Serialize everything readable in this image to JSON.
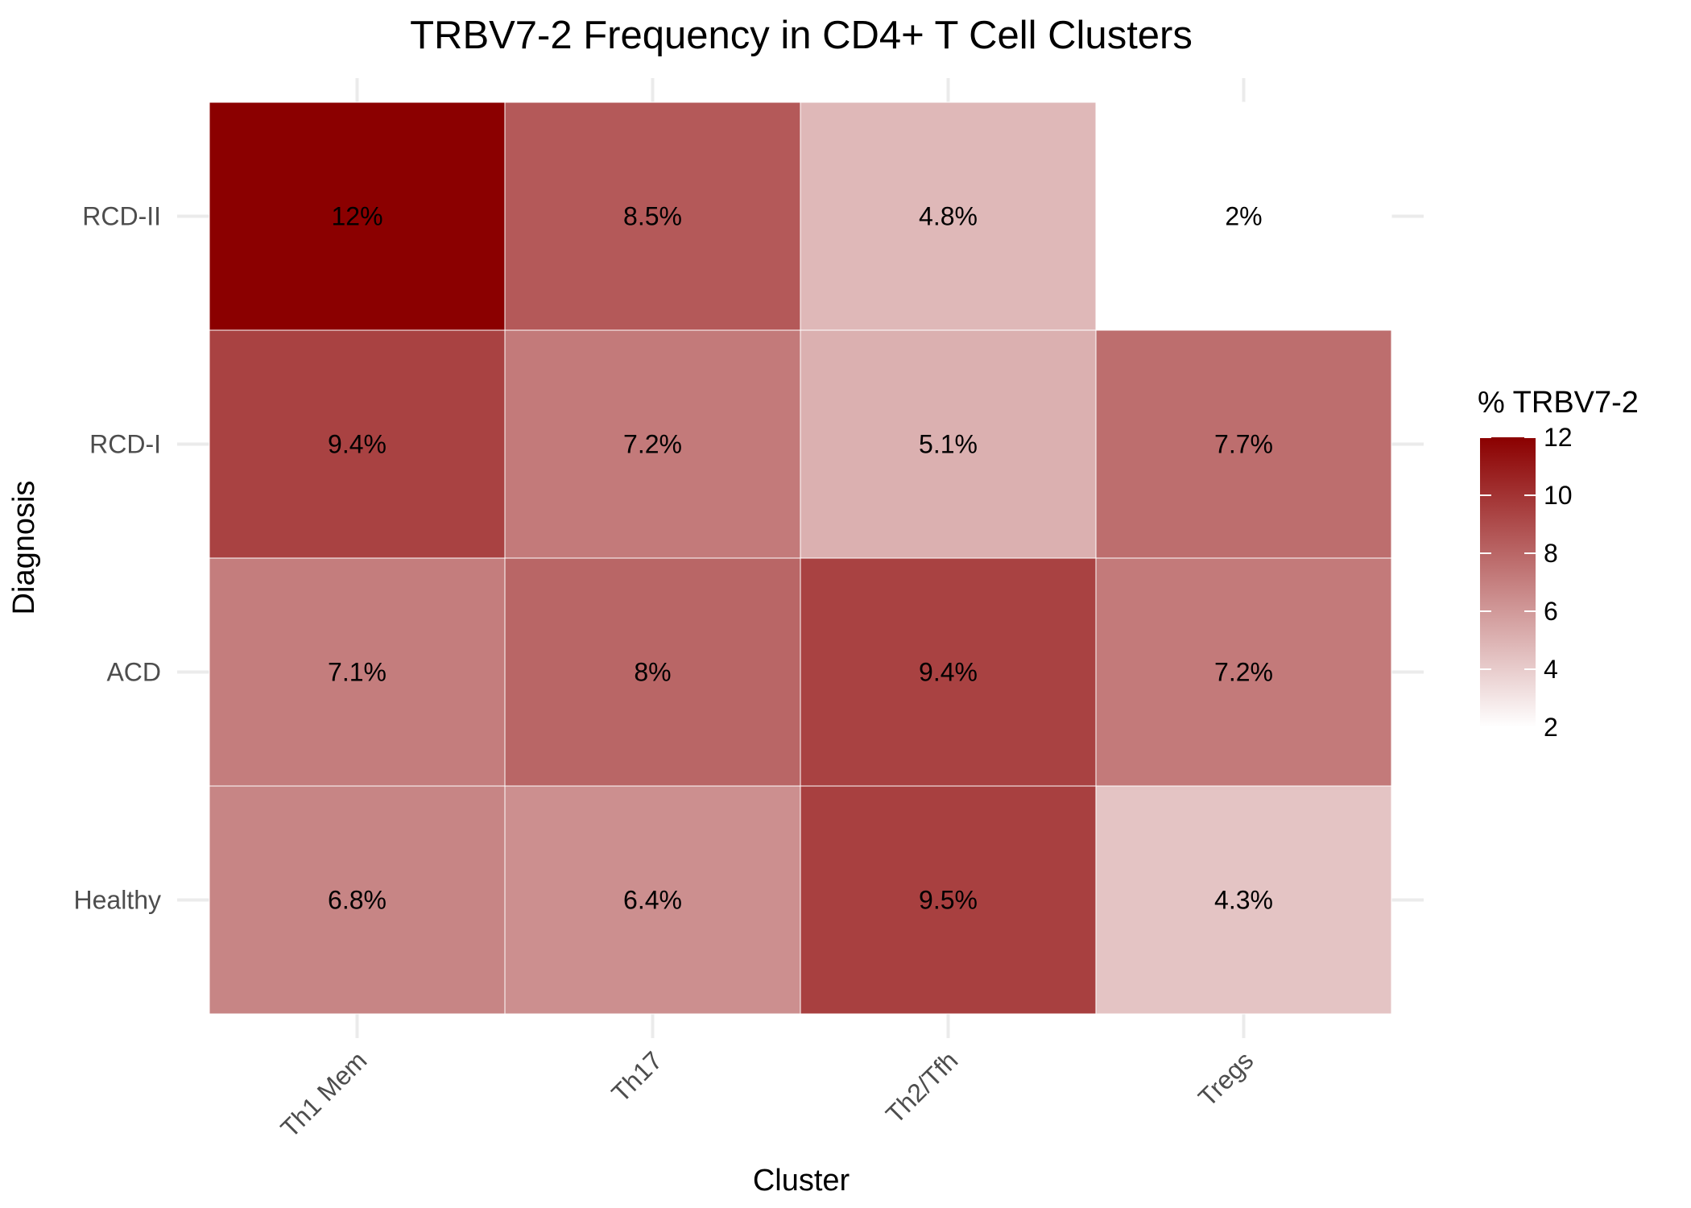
{
  "chart_data": {
    "type": "heatmap",
    "title": "TRBV7-2 Frequency in CD4+ T Cell Clusters",
    "xlabel": "Cluster",
    "ylabel": "Diagnosis",
    "x_categories": [
      "Th1 Mem",
      "Th17",
      "Th2/Tfh",
      "Tregs"
    ],
    "y_categories": [
      "RCD-II",
      "RCD-I",
      "ACD",
      "Healthy"
    ],
    "values": [
      [
        12,
        8.5,
        4.8,
        2
      ],
      [
        9.4,
        7.2,
        5.1,
        7.7
      ],
      [
        7.1,
        8,
        9.4,
        7.2
      ],
      [
        6.8,
        6.4,
        9.5,
        4.3
      ]
    ],
    "cell_labels": [
      [
        "12%",
        "8.5%",
        "4.8%",
        "2%"
      ],
      [
        "9.4%",
        "7.2%",
        "5.1%",
        "7.7%"
      ],
      [
        "7.1%",
        "8%",
        "9.4%",
        "7.2%"
      ],
      [
        "6.8%",
        "6.4%",
        "9.5%",
        "4.3%"
      ]
    ],
    "legend": {
      "title": "% TRBV7-2",
      "ticks": [
        2,
        4,
        6,
        8,
        10,
        12
      ],
      "tick_labels": [
        "2",
        "4",
        "6",
        "8",
        "10",
        "12"
      ],
      "range": [
        2,
        12
      ],
      "placement": "right"
    },
    "colors": {
      "low": "#ffffff",
      "high": "#8b0000",
      "grid": "#ebebeb",
      "cell_border": "#ffffff"
    },
    "grid": true
  }
}
